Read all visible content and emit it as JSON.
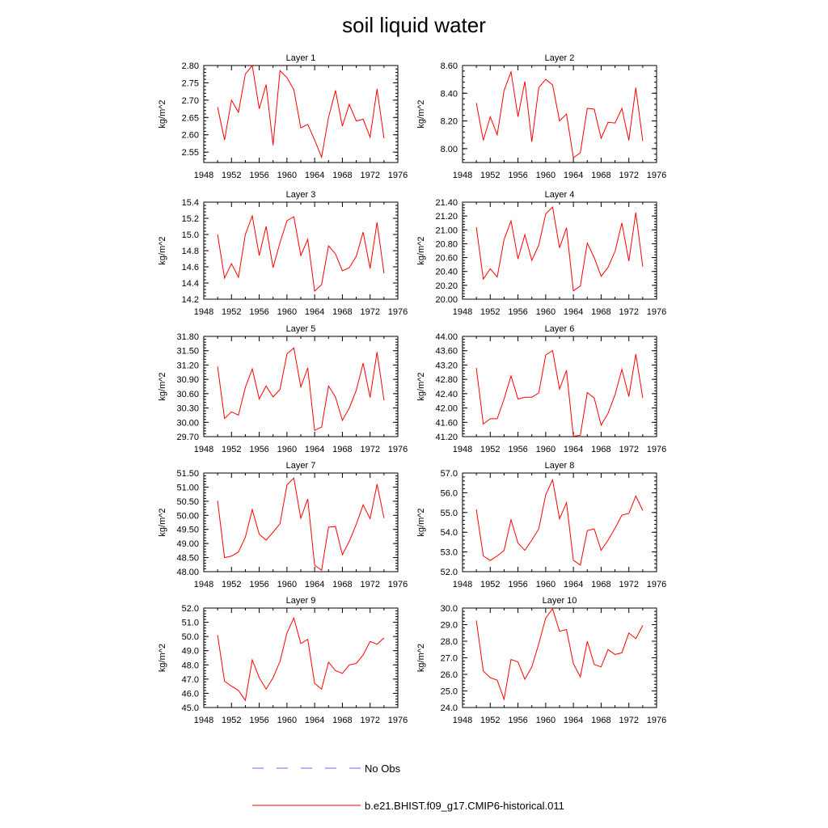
{
  "title": "soil liquid water",
  "colors": {
    "model_line": "#ff0000",
    "obs_line": "#6a6aff",
    "axis": "#000000"
  },
  "legend": {
    "obs_label": "No Obs",
    "model_label": "b.e21.BHIST.f09_g17.CMIP6-historical.011"
  },
  "chart_data": [
    {
      "type": "line",
      "title": "Layer 1",
      "ylabel": "kg/m^2",
      "xlim": [
        1948,
        1976
      ],
      "xticks": [
        1948,
        1952,
        1956,
        1960,
        1964,
        1968,
        1972,
        1976
      ],
      "ylim": [
        2.52,
        2.8
      ],
      "yticks": [
        2.55,
        2.6,
        2.65,
        2.7,
        2.75,
        2.8
      ],
      "ydecimals": 2,
      "series": [
        {
          "x": [
            1950,
            1951,
            1952,
            1953,
            1954,
            1955,
            1956,
            1957,
            1958,
            1959,
            1960,
            1961,
            1962,
            1963,
            1964,
            1965,
            1966,
            1967,
            1968,
            1969,
            1970,
            1971,
            1972,
            1973,
            1974
          ],
          "values": [
            2.68,
            2.585,
            2.7,
            2.665,
            2.775,
            2.8,
            2.675,
            2.745,
            2.57,
            2.785,
            2.765,
            2.73,
            2.62,
            2.63,
            2.585,
            2.535,
            2.65,
            2.728,
            2.625,
            2.688,
            2.64,
            2.645,
            2.593,
            2.732,
            2.59
          ]
        }
      ]
    },
    {
      "type": "line",
      "title": "Layer 2",
      "ylabel": "kg/m^2",
      "xlim": [
        1948,
        1976
      ],
      "xticks": [
        1948,
        1952,
        1956,
        1960,
        1964,
        1968,
        1972,
        1976
      ],
      "ylim": [
        7.9,
        8.6
      ],
      "yticks": [
        8.0,
        8.2,
        8.4,
        8.6
      ],
      "ydecimals": 2,
      "series": [
        {
          "x": [
            1950,
            1951,
            1952,
            1953,
            1954,
            1955,
            1956,
            1957,
            1958,
            1959,
            1960,
            1961,
            1962,
            1963,
            1964,
            1965,
            1966,
            1967,
            1968,
            1969,
            1970,
            1971,
            1972,
            1973,
            1974
          ],
          "values": [
            8.33,
            8.06,
            8.23,
            8.1,
            8.42,
            8.555,
            8.23,
            8.485,
            8.05,
            8.44,
            8.5,
            8.46,
            8.2,
            8.25,
            7.935,
            7.97,
            8.29,
            8.285,
            8.075,
            8.19,
            8.185,
            8.29,
            8.06,
            8.44,
            8.055
          ]
        }
      ]
    },
    {
      "type": "line",
      "title": "Layer 3",
      "ylabel": "kg/m^2",
      "xlim": [
        1948,
        1976
      ],
      "xticks": [
        1948,
        1952,
        1956,
        1960,
        1964,
        1968,
        1972,
        1976
      ],
      "ylim": [
        14.2,
        15.4
      ],
      "yticks": [
        14.2,
        14.4,
        14.6,
        14.8,
        15.0,
        15.2,
        15.4
      ],
      "ydecimals": 1,
      "series": [
        {
          "x": [
            1950,
            1951,
            1952,
            1953,
            1954,
            1955,
            1956,
            1957,
            1958,
            1959,
            1960,
            1961,
            1962,
            1963,
            1964,
            1965,
            1966,
            1967,
            1968,
            1969,
            1970,
            1971,
            1972,
            1973,
            1974
          ],
          "values": [
            15.0,
            14.46,
            14.64,
            14.47,
            15.0,
            15.23,
            14.74,
            15.1,
            14.59,
            14.9,
            15.17,
            15.22,
            14.74,
            14.94,
            14.3,
            14.38,
            14.86,
            14.76,
            14.55,
            14.59,
            14.73,
            15.03,
            14.58,
            15.15,
            14.52
          ]
        }
      ]
    },
    {
      "type": "line",
      "title": "Layer 4",
      "ylabel": "kg/m^2",
      "xlim": [
        1948,
        1976
      ],
      "xticks": [
        1948,
        1952,
        1956,
        1960,
        1964,
        1968,
        1972,
        1976
      ],
      "ylim": [
        20.0,
        21.4
      ],
      "yticks": [
        20.0,
        20.2,
        20.4,
        20.6,
        20.8,
        21.0,
        21.2,
        21.4
      ],
      "ydecimals": 2,
      "series": [
        {
          "x": [
            1950,
            1951,
            1952,
            1953,
            1954,
            1955,
            1956,
            1957,
            1958,
            1959,
            1960,
            1961,
            1962,
            1963,
            1964,
            1965,
            1966,
            1967,
            1968,
            1969,
            1970,
            1971,
            1972,
            1973,
            1974
          ],
          "values": [
            21.04,
            20.29,
            20.44,
            20.32,
            20.86,
            21.13,
            20.58,
            20.93,
            20.56,
            20.78,
            21.23,
            21.33,
            20.74,
            21.03,
            20.12,
            20.19,
            20.81,
            20.6,
            20.33,
            20.46,
            20.69,
            21.1,
            20.55,
            21.25,
            20.47
          ]
        }
      ]
    },
    {
      "type": "line",
      "title": "Layer 5",
      "ylabel": "kg/m^2",
      "xlim": [
        1948,
        1976
      ],
      "xticks": [
        1948,
        1952,
        1956,
        1960,
        1964,
        1968,
        1972,
        1976
      ],
      "ylim": [
        29.7,
        31.8
      ],
      "yticks": [
        29.7,
        30.0,
        30.3,
        30.6,
        30.9,
        31.2,
        31.5,
        31.8
      ],
      "ydecimals": 2,
      "series": [
        {
          "x": [
            1950,
            1951,
            1952,
            1953,
            1954,
            1955,
            1956,
            1957,
            1958,
            1959,
            1960,
            1961,
            1962,
            1963,
            1964,
            1965,
            1966,
            1967,
            1968,
            1969,
            1970,
            1971,
            1972,
            1973,
            1974
          ],
          "values": [
            31.17,
            30.08,
            30.22,
            30.15,
            30.73,
            31.12,
            30.49,
            30.76,
            30.53,
            30.69,
            31.43,
            31.56,
            30.74,
            31.14,
            29.83,
            29.9,
            30.76,
            30.53,
            30.04,
            30.3,
            30.67,
            31.24,
            30.52,
            31.47,
            30.46
          ]
        }
      ]
    },
    {
      "type": "line",
      "title": "Layer 6",
      "ylabel": "kg/m^2",
      "xlim": [
        1948,
        1976
      ],
      "xticks": [
        1948,
        1952,
        1956,
        1960,
        1964,
        1968,
        1972,
        1976
      ],
      "ylim": [
        41.2,
        44.0
      ],
      "yticks": [
        41.2,
        41.6,
        42.0,
        42.4,
        42.8,
        43.2,
        43.6,
        44.0
      ],
      "ydecimals": 2,
      "series": [
        {
          "x": [
            1950,
            1951,
            1952,
            1953,
            1954,
            1955,
            1956,
            1957,
            1958,
            1959,
            1960,
            1961,
            1962,
            1963,
            1964,
            1965,
            1966,
            1967,
            1968,
            1969,
            1970,
            1971,
            1972,
            1973,
            1974
          ],
          "values": [
            43.12,
            41.55,
            41.7,
            41.7,
            42.25,
            42.9,
            42.25,
            42.3,
            42.3,
            42.42,
            43.48,
            43.6,
            42.53,
            43.05,
            41.21,
            41.24,
            42.43,
            42.28,
            41.52,
            41.85,
            42.37,
            43.08,
            42.32,
            43.5,
            42.28
          ]
        }
      ]
    },
    {
      "type": "line",
      "title": "Layer 7",
      "ylabel": "kg/m^2",
      "xlim": [
        1948,
        1976
      ],
      "xticks": [
        1948,
        1952,
        1956,
        1960,
        1964,
        1968,
        1972,
        1976
      ],
      "ylim": [
        48.0,
        51.5
      ],
      "yticks": [
        48.0,
        48.5,
        49.0,
        49.5,
        50.0,
        50.5,
        51.0,
        51.5
      ],
      "ydecimals": 2,
      "series": [
        {
          "x": [
            1950,
            1951,
            1952,
            1953,
            1954,
            1955,
            1956,
            1957,
            1958,
            1959,
            1960,
            1961,
            1962,
            1963,
            1964,
            1965,
            1966,
            1967,
            1968,
            1969,
            1970,
            1971,
            1972,
            1973,
            1974
          ],
          "values": [
            50.52,
            48.5,
            48.55,
            48.7,
            49.22,
            50.2,
            49.33,
            49.12,
            49.4,
            49.7,
            51.08,
            51.32,
            49.9,
            50.58,
            48.23,
            48.05,
            49.58,
            49.6,
            48.6,
            49.08,
            49.68,
            50.37,
            49.88,
            51.1,
            49.9
          ]
        }
      ]
    },
    {
      "type": "line",
      "title": "Layer 8",
      "ylabel": "kg/m^2",
      "xlim": [
        1948,
        1976
      ],
      "xticks": [
        1948,
        1952,
        1956,
        1960,
        1964,
        1968,
        1972,
        1976
      ],
      "ylim": [
        52.0,
        57.0
      ],
      "yticks": [
        52.0,
        53.0,
        54.0,
        55.0,
        56.0,
        57.0
      ],
      "ydecimals": 1,
      "series": [
        {
          "x": [
            1950,
            1951,
            1952,
            1953,
            1954,
            1955,
            1956,
            1957,
            1958,
            1959,
            1960,
            1961,
            1962,
            1963,
            1964,
            1965,
            1966,
            1967,
            1968,
            1969,
            1970,
            1971,
            1972,
            1973,
            1974
          ],
          "values": [
            55.15,
            52.8,
            52.57,
            52.8,
            53.07,
            54.63,
            53.45,
            53.08,
            53.6,
            54.17,
            55.9,
            56.65,
            54.68,
            55.5,
            52.58,
            52.33,
            54.08,
            54.17,
            53.08,
            53.6,
            54.2,
            54.87,
            54.95,
            55.83,
            55.1
          ]
        }
      ]
    },
    {
      "type": "line",
      "title": "Layer 9",
      "ylabel": "kg/m^2",
      "xlim": [
        1948,
        1976
      ],
      "xticks": [
        1948,
        1952,
        1956,
        1960,
        1964,
        1968,
        1972,
        1976
      ],
      "ylim": [
        45.0,
        52.0
      ],
      "yticks": [
        45.0,
        46.0,
        47.0,
        48.0,
        49.0,
        50.0,
        51.0,
        52.0
      ],
      "ydecimals": 1,
      "series": [
        {
          "x": [
            1950,
            1951,
            1952,
            1953,
            1954,
            1955,
            1956,
            1957,
            1958,
            1959,
            1960,
            1961,
            1962,
            1963,
            1964,
            1965,
            1966,
            1967,
            1968,
            1969,
            1970,
            1971,
            1972,
            1973,
            1974
          ],
          "values": [
            50.1,
            46.85,
            46.5,
            46.2,
            45.5,
            48.35,
            47.1,
            46.3,
            47.1,
            48.25,
            50.25,
            51.3,
            49.5,
            49.8,
            46.7,
            46.3,
            48.2,
            47.6,
            47.4,
            48.0,
            48.1,
            48.7,
            49.65,
            49.45,
            49.9
          ]
        }
      ]
    },
    {
      "type": "line",
      "title": "Layer 10",
      "ylabel": "kg/m^2",
      "xlim": [
        1948,
        1976
      ],
      "xticks": [
        1948,
        1952,
        1956,
        1960,
        1964,
        1968,
        1972,
        1976
      ],
      "ylim": [
        24.0,
        30.0
      ],
      "yticks": [
        24.0,
        25.0,
        26.0,
        27.0,
        28.0,
        29.0,
        30.0
      ],
      "ydecimals": 1,
      "series": [
        {
          "x": [
            1950,
            1951,
            1952,
            1953,
            1954,
            1955,
            1956,
            1957,
            1958,
            1959,
            1960,
            1961,
            1962,
            1963,
            1964,
            1965,
            1966,
            1967,
            1968,
            1969,
            1970,
            1971,
            1972,
            1973,
            1974
          ],
          "values": [
            29.25,
            26.2,
            25.8,
            25.65,
            24.5,
            26.9,
            26.75,
            25.7,
            26.45,
            27.85,
            29.4,
            29.95,
            28.6,
            28.7,
            26.65,
            25.85,
            28.0,
            26.6,
            26.45,
            27.5,
            27.2,
            27.3,
            28.5,
            28.15,
            28.95
          ]
        }
      ]
    }
  ]
}
